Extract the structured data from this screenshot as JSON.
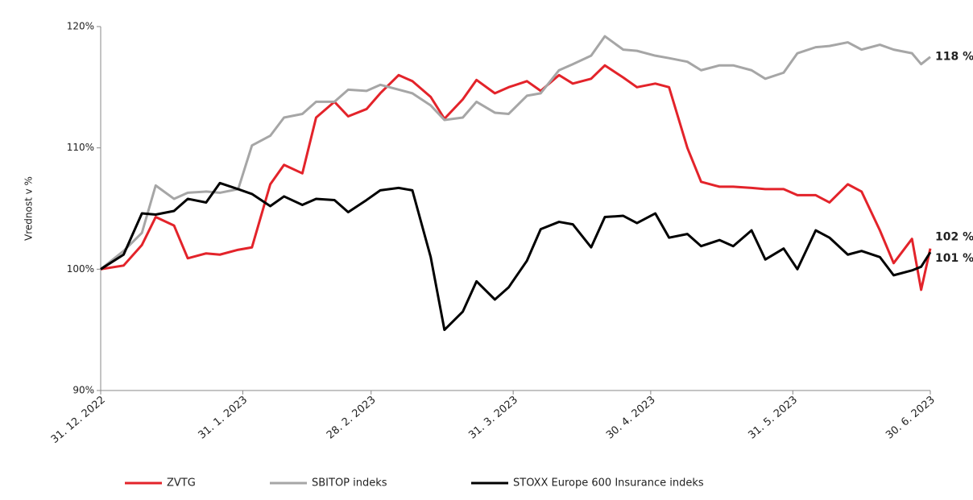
{
  "chart_data": {
    "type": "line",
    "y_label": "Vrednost v %",
    "x": [
      "2022-12-31",
      "2023-01-05",
      "2023-01-09",
      "2023-01-12",
      "2023-01-16",
      "2023-01-19",
      "2023-01-23",
      "2023-01-26",
      "2023-01-30",
      "2023-02-02",
      "2023-02-06",
      "2023-02-09",
      "2023-02-13",
      "2023-02-16",
      "2023-02-20",
      "2023-02-23",
      "2023-02-27",
      "2023-03-02",
      "2023-03-06",
      "2023-03-09",
      "2023-03-13",
      "2023-03-16",
      "2023-03-20",
      "2023-03-23",
      "2023-03-27",
      "2023-03-30",
      "2023-04-03",
      "2023-04-06",
      "2023-04-10",
      "2023-04-13",
      "2023-04-17",
      "2023-04-20",
      "2023-04-24",
      "2023-04-27",
      "2023-05-01",
      "2023-05-04",
      "2023-05-08",
      "2023-05-11",
      "2023-05-15",
      "2023-05-18",
      "2023-05-22",
      "2023-05-25",
      "2023-05-29",
      "2023-06-01",
      "2023-06-05",
      "2023-06-08",
      "2023-06-12",
      "2023-06-15",
      "2023-06-19",
      "2023-06-22",
      "2023-06-26",
      "2023-06-28",
      "2023-06-30"
    ],
    "series": [
      {
        "name": "ZVTG",
        "color": "#e3232a",
        "values": [
          100,
          100.3,
          102,
          104.3,
          103.6,
          100.9,
          101.3,
          101.2,
          101.6,
          101.8,
          107,
          108.6,
          107.9,
          112.5,
          113.8,
          112.6,
          113.2,
          114.5,
          116,
          115.5,
          114.2,
          112.4,
          114,
          115.6,
          114.5,
          115,
          115.5,
          114.7,
          116,
          115.3,
          115.7,
          116.8,
          115.8,
          115,
          115.3,
          115,
          110,
          107.2,
          106.8,
          106.8,
          106.7,
          106.6,
          106.6,
          106.1,
          106.1,
          105.5,
          107,
          106.4,
          103.2,
          100.5,
          102.5,
          98.3,
          101.7
        ],
        "value_labels": [
          null,
          null,
          null,
          null,
          null,
          null,
          null,
          null,
          null,
          null,
          null,
          null,
          null,
          null,
          null,
          null,
          null,
          null,
          null,
          null,
          null,
          null,
          null,
          null,
          null,
          null,
          null,
          null,
          null,
          null,
          null,
          null,
          null,
          null,
          null,
          null,
          null,
          null,
          null,
          null,
          null,
          null,
          null,
          null,
          null,
          null,
          null,
          null,
          null,
          null,
          null,
          null,
          "102 %"
        ]
      },
      {
        "name": "SBITOP indeks",
        "color": "#a6a6a6",
        "values": [
          100,
          101.5,
          103,
          106.9,
          105.8,
          106.3,
          106.4,
          106.3,
          106.6,
          110.2,
          111,
          112.5,
          112.8,
          113.8,
          113.8,
          114.8,
          114.7,
          115.2,
          114.8,
          114.5,
          113.5,
          112.3,
          112.5,
          113.8,
          112.9,
          112.8,
          114.3,
          114.5,
          116.4,
          116.9,
          117.6,
          119.2,
          118.1,
          118,
          117.6,
          117.4,
          117.1,
          116.4,
          116.8,
          116.8,
          116.4,
          115.7,
          116.2,
          117.8,
          118.3,
          118.4,
          118.7,
          118.1,
          118.5,
          118.1,
          117.8,
          116.9,
          117.5
        ],
        "value_labels": [
          null,
          null,
          null,
          null,
          null,
          null,
          null,
          null,
          null,
          null,
          null,
          null,
          null,
          null,
          null,
          null,
          null,
          null,
          null,
          null,
          null,
          null,
          null,
          null,
          null,
          null,
          null,
          null,
          null,
          null,
          null,
          null,
          null,
          null,
          null,
          null,
          null,
          null,
          null,
          null,
          null,
          null,
          null,
          null,
          null,
          null,
          null,
          null,
          null,
          null,
          null,
          null,
          "118 %"
        ]
      },
      {
        "name": "STOXX Europe 600 Insurance indeks",
        "color": "#000000",
        "values": [
          100,
          101.2,
          104.6,
          104.5,
          104.8,
          105.8,
          105.5,
          107.1,
          106.6,
          106.2,
          105.2,
          106,
          105.3,
          105.8,
          105.7,
          104.7,
          105.7,
          106.5,
          106.7,
          106.5,
          101,
          95,
          96.5,
          99,
          97.5,
          98.5,
          100.7,
          103.3,
          103.9,
          103.7,
          101.8,
          104.3,
          104.4,
          103.8,
          104.6,
          102.6,
          102.9,
          101.9,
          102.4,
          101.9,
          103.2,
          100.8,
          101.7,
          100,
          103.2,
          102.6,
          101.2,
          101.5,
          101,
          99.5,
          99.9,
          100.2,
          101.4
        ],
        "value_labels": [
          null,
          null,
          null,
          null,
          null,
          null,
          null,
          null,
          null,
          null,
          null,
          null,
          null,
          null,
          null,
          null,
          null,
          null,
          null,
          null,
          null,
          null,
          null,
          null,
          null,
          null,
          null,
          null,
          null,
          null,
          null,
          null,
          null,
          null,
          null,
          null,
          null,
          null,
          null,
          null,
          null,
          null,
          null,
          null,
          null,
          null,
          null,
          null,
          null,
          null,
          null,
          null,
          "101 %"
        ]
      }
    ],
    "xlim": [
      "2022-12-31",
      "2023-06-30"
    ],
    "xticks": [
      {
        "value": "2022-12-31",
        "label": "31. 12. 2022"
      },
      {
        "value": "2023-01-31",
        "label": "31. 1. 2023"
      },
      {
        "value": "2023-02-28",
        "label": "28. 2. 2023"
      },
      {
        "value": "2023-03-31",
        "label": "31. 3. 2023"
      },
      {
        "value": "2023-04-30",
        "label": "30. 4. 2023"
      },
      {
        "value": "2023-05-31",
        "label": "31. 5. 2023"
      },
      {
        "value": "2023-06-30",
        "label": "30. 6. 2023"
      }
    ],
    "ylim": [
      90,
      120
    ],
    "yticks": [
      {
        "value": 90,
        "label": "90%"
      },
      {
        "value": 100,
        "label": "100%"
      },
      {
        "value": 110,
        "label": "110%"
      },
      {
        "value": 120,
        "label": "120%"
      }
    ],
    "grid": false,
    "legend": "bottom"
  }
}
